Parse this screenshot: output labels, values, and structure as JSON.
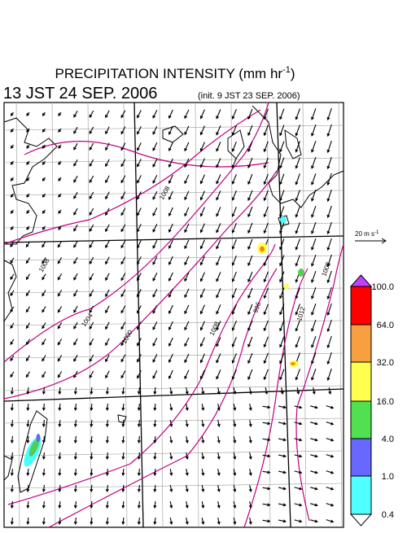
{
  "header": {
    "title": "PRECIPITATION INTENSITY (mm hr",
    "title_exponent": "-1",
    "title_close": ")",
    "valid_time": "13 JST 24 SEP. 2006",
    "init_time": "(init. 9 JST 23 SEP. 2006)"
  },
  "wind_reference": {
    "label": "20 m s",
    "exponent": "-1"
  },
  "colorbar": {
    "labels": [
      "100.0",
      "64.0",
      "32.0",
      "16.0",
      "4.0",
      "1.0",
      "0.4"
    ]
  },
  "isobars": {
    "labels": [
      "1008",
      "1008",
      "1004",
      "1000",
      "1008",
      "996",
      "1012",
      "1008"
    ]
  }
}
